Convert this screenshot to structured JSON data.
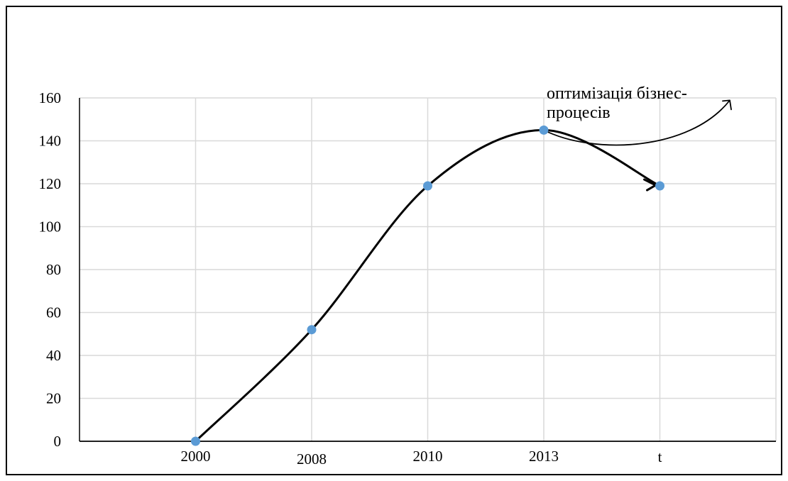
{
  "chart_data": {
    "type": "line",
    "categories": [
      "2000",
      "2008",
      "2010",
      "2013",
      "t"
    ],
    "series": [
      {
        "values": [
          0,
          52,
          119,
          145,
          119
        ]
      }
    ],
    "ylim": [
      0,
      160
    ],
    "y_ticks": [
      0,
      20,
      40,
      60,
      80,
      100,
      120,
      140,
      160
    ],
    "grid": true,
    "smooth": true,
    "colors": {
      "line": "#000000",
      "marker": "#5b9bd5",
      "grid": "#d9d9d9",
      "axis": "#000000"
    },
    "annotation": {
      "text_line1": "оптимізація бізнес-",
      "text_line2": "процесів"
    }
  }
}
